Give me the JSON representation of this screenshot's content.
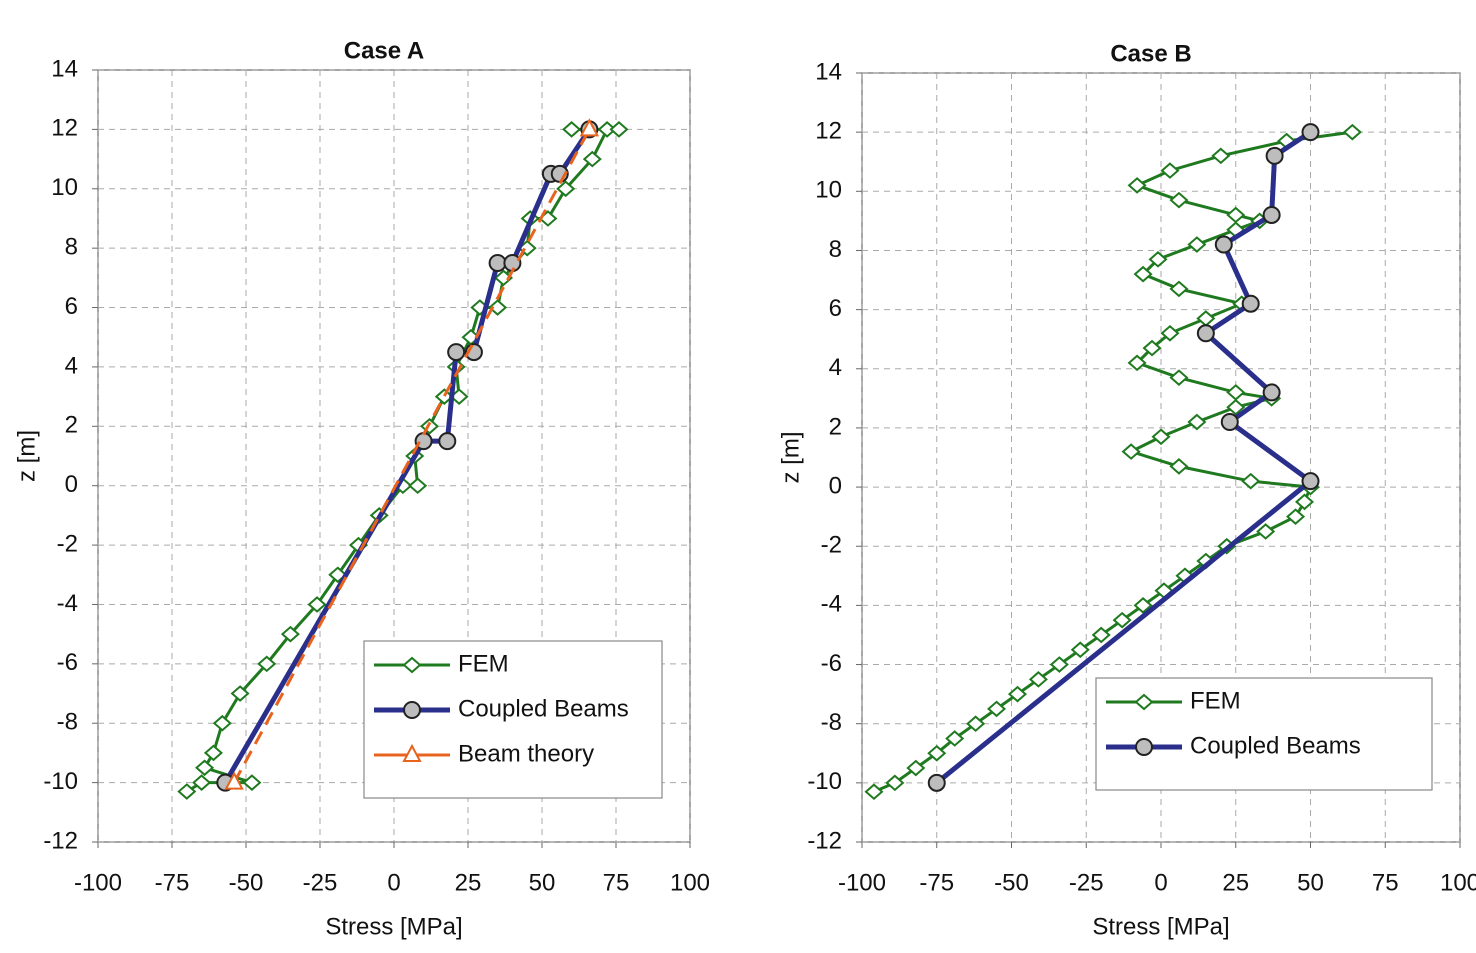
{
  "chart_data": [
    {
      "type": "line",
      "title": "Case A",
      "xlabel": "Stress [MPa]",
      "ylabel": "z [m]",
      "xlim": [
        -100,
        100
      ],
      "xticks": [
        -100,
        -75,
        -50,
        -25,
        0,
        25,
        50,
        75,
        100
      ],
      "ylim": [
        -12,
        14
      ],
      "yticks": [
        -12,
        -10,
        -8,
        -6,
        -4,
        -2,
        0,
        2,
        4,
        6,
        8,
        10,
        12,
        14
      ],
      "grid": true,
      "legend": "lower right",
      "series": [
        {
          "name": "FEM",
          "color": "#1f7a1f",
          "marker": "diamond",
          "x": [
            -70,
            -65,
            -48,
            -64,
            -61,
            -58,
            -52,
            -43,
            -35,
            -26,
            -19,
            -12,
            -5,
            3,
            8,
            7,
            12,
            17,
            22,
            21,
            26,
            29,
            35,
            37,
            45,
            46,
            52,
            58,
            67,
            72,
            76,
            60
          ],
          "values": [
            -10.3,
            -10,
            -10,
            -9.5,
            -9,
            -8,
            -7,
            -6,
            -5,
            -4,
            -3,
            -2,
            -1,
            0,
            0,
            1,
            2,
            3,
            3,
            4,
            5,
            6,
            6,
            7,
            8,
            9,
            9,
            10,
            11,
            12,
            12,
            12
          ]
        },
        {
          "name": "Coupled Beams",
          "color": "#2a2f8c",
          "marker": "circle",
          "x": [
            -57,
            10,
            18,
            21,
            27,
            35,
            40,
            53,
            56,
            66
          ],
          "values": [
            -10,
            1.5,
            1.5,
            4.5,
            4.5,
            7.5,
            7.5,
            10.5,
            10.5,
            12
          ]
        },
        {
          "name": "Beam theory",
          "color": "#e8641e",
          "marker": "triangle",
          "dash": true,
          "x": [
            -54,
            66
          ],
          "values": [
            -10,
            12
          ]
        }
      ]
    },
    {
      "type": "line",
      "title": "Case B",
      "xlabel": "Stress [MPa]",
      "ylabel": "z [m]",
      "xlim": [
        -100,
        100
      ],
      "xticks": [
        -100,
        -75,
        -50,
        -25,
        0,
        25,
        50,
        75,
        100
      ],
      "ylim": [
        -12,
        14
      ],
      "yticks": [
        -12,
        -10,
        -8,
        -6,
        -4,
        -2,
        0,
        2,
        4,
        6,
        8,
        10,
        12,
        14
      ],
      "grid": true,
      "legend": "lower right",
      "series": [
        {
          "name": "FEM",
          "color": "#1f7a1f",
          "marker": "diamond",
          "x": [
            -96,
            -89,
            -82,
            -75,
            -69,
            -62,
            -55,
            -48,
            -41,
            -34,
            -27,
            -20,
            -13,
            -6,
            1,
            8,
            15,
            22,
            35,
            45,
            48,
            50,
            30,
            6,
            -10,
            0,
            12,
            25,
            37,
            25,
            6,
            -8,
            -3,
            3,
            15,
            27,
            6,
            -6,
            -1,
            12,
            25,
            33,
            25,
            6,
            -8,
            3,
            20,
            42,
            64
          ],
          "values": [
            -10.3,
            -10,
            -9.5,
            -9,
            -8.5,
            -8,
            -7.5,
            -7,
            -6.5,
            -6,
            -5.5,
            -5,
            -4.5,
            -4,
            -3.5,
            -3,
            -2.5,
            -2,
            -1.5,
            -1,
            -0.5,
            0,
            0.2,
            0.7,
            1.2,
            1.7,
            2.2,
            2.7,
            3.0,
            3.2,
            3.7,
            4.2,
            4.7,
            5.2,
            5.7,
            6.2,
            6.7,
            7.2,
            7.7,
            8.2,
            8.7,
            9.0,
            9.2,
            9.7,
            10.2,
            10.7,
            11.2,
            11.7,
            12
          ]
        },
        {
          "name": "Coupled Beams",
          "color": "#2a2f8c",
          "marker": "circle",
          "x": [
            -75,
            50,
            23,
            37,
            15,
            30,
            21,
            37,
            38,
            50
          ],
          "values": [
            -10,
            0.2,
            2.2,
            3.2,
            5.2,
            6.2,
            8.2,
            9.2,
            11.2,
            12
          ]
        }
      ]
    }
  ]
}
